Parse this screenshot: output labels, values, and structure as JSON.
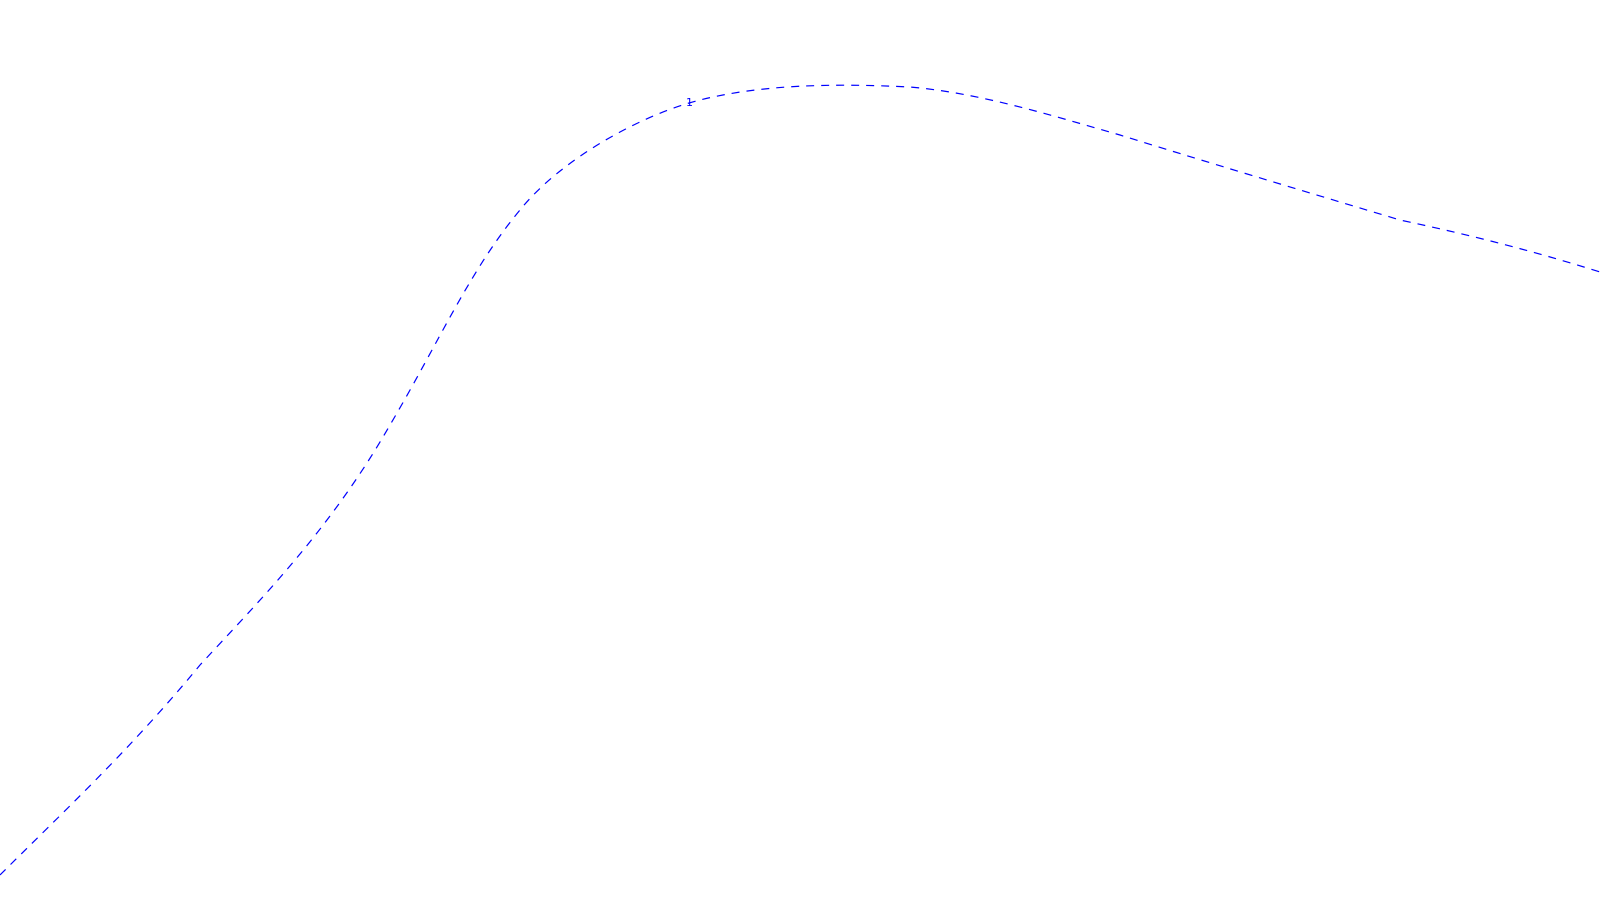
{
  "contour": {
    "label": "1",
    "color": "#0000ff",
    "style": "dashed"
  }
}
